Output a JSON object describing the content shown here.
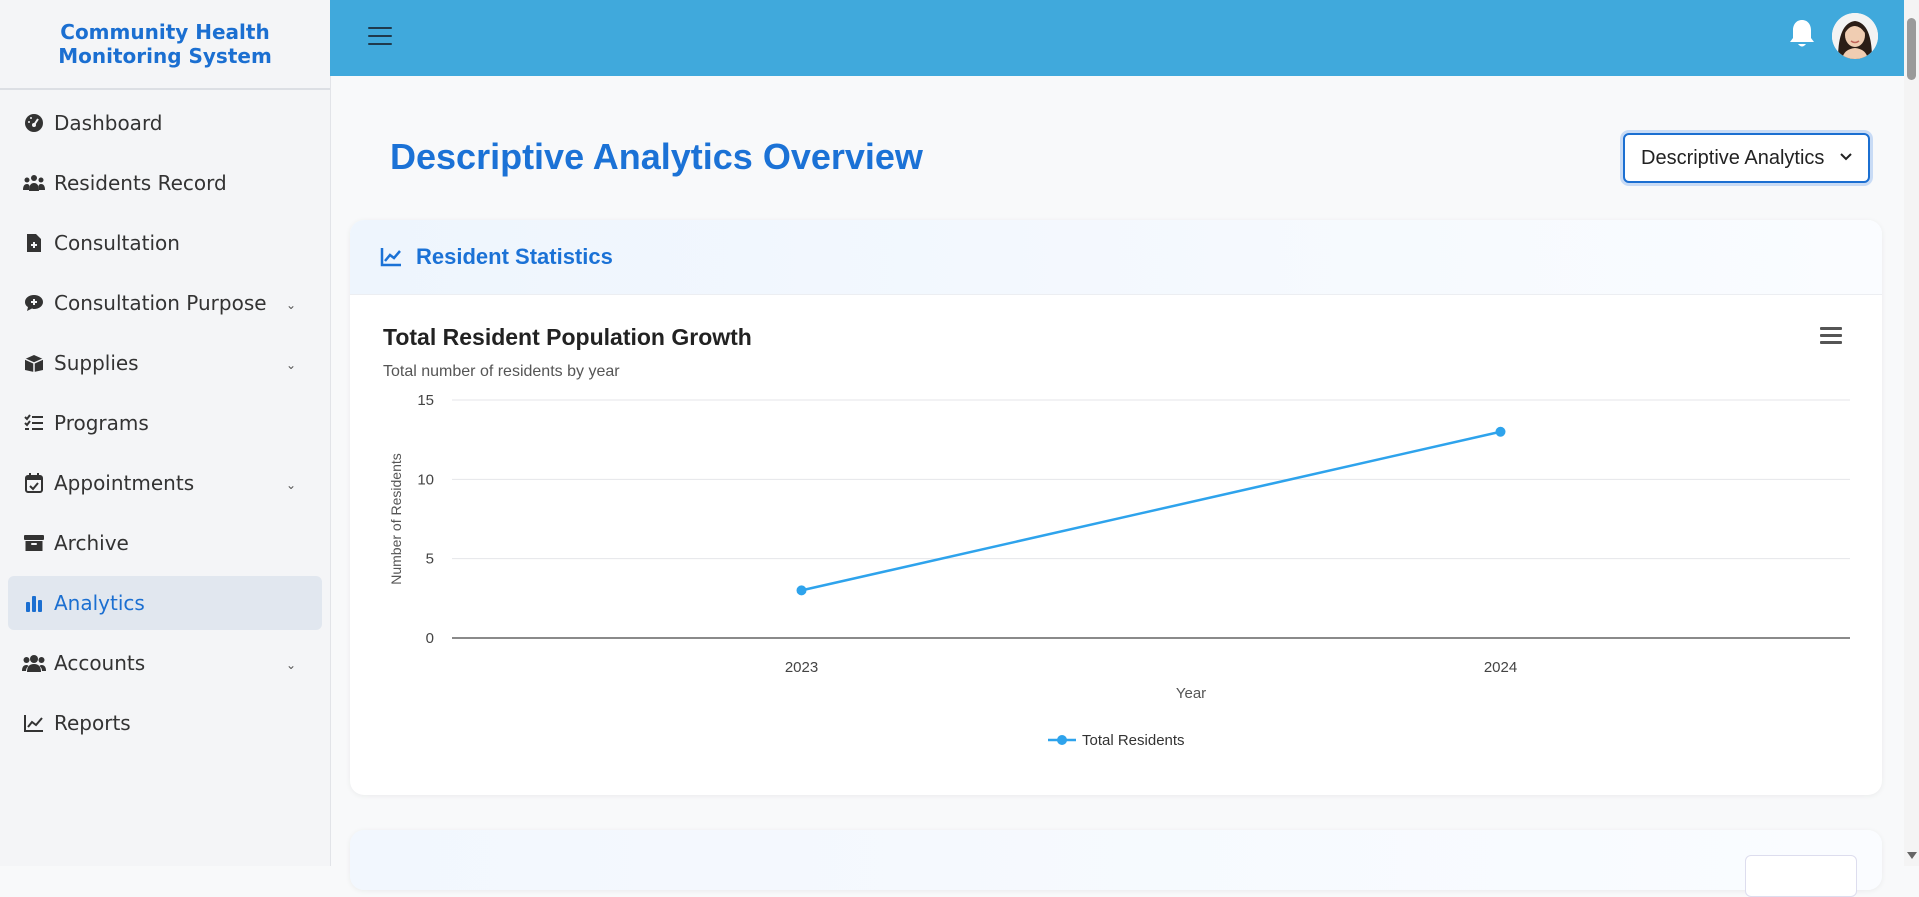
{
  "app": {
    "title_line1": "Community Health",
    "title_line2": "Monitoring System"
  },
  "sidebar": {
    "items": [
      {
        "label": "Dashboard",
        "icon": "dashboard-gauge-icon",
        "has_chevron": false
      },
      {
        "label": "Residents Record",
        "icon": "people-group-icon",
        "has_chevron": false
      },
      {
        "label": "Consultation",
        "icon": "medical-file-icon",
        "has_chevron": false
      },
      {
        "label": "Consultation Purpose",
        "icon": "comment-medical-icon",
        "has_chevron": true
      },
      {
        "label": "Supplies",
        "icon": "boxes-icon",
        "has_chevron": true
      },
      {
        "label": "Programs",
        "icon": "checklist-icon",
        "has_chevron": false
      },
      {
        "label": "Appointments",
        "icon": "calendar-check-icon",
        "has_chevron": true
      },
      {
        "label": "Archive",
        "icon": "archive-box-icon",
        "has_chevron": false
      },
      {
        "label": "Analytics",
        "icon": "bar-chart-icon",
        "has_chevron": false,
        "active": true
      },
      {
        "label": "Accounts",
        "icon": "users-icon",
        "has_chevron": true
      },
      {
        "label": "Reports",
        "icon": "line-chart-icon",
        "has_chevron": false
      }
    ],
    "chevron_glyph": "⌄"
  },
  "header": {
    "menu_icon": "hamburger-icon",
    "notification_icon": "bell-icon",
    "avatar": "user-avatar"
  },
  "main": {
    "title": "Descriptive Analytics Overview",
    "view_select": {
      "value": "Descriptive Analytics"
    },
    "section": {
      "title": "Resident Statistics",
      "icon": "line-chart-icon"
    }
  },
  "chart_data": {
    "type": "line",
    "title": "Total Resident Population Growth",
    "subtitle": "Total number of residents by year",
    "categories": [
      "2023",
      "2024"
    ],
    "series": [
      {
        "name": "Total Residents",
        "values": [
          3,
          13
        ]
      }
    ],
    "xlabel": "Year",
    "ylabel": "Number of Residents",
    "ylim": [
      0,
      15
    ],
    "yticks": [
      0,
      5,
      10,
      15
    ],
    "grid": true,
    "legend": "bottom-center"
  },
  "colors": {
    "accent": "#1b72d6",
    "topbar": "#40a9dc",
    "series": "#2ea3ec",
    "active_bg": "#e1e7ef"
  }
}
